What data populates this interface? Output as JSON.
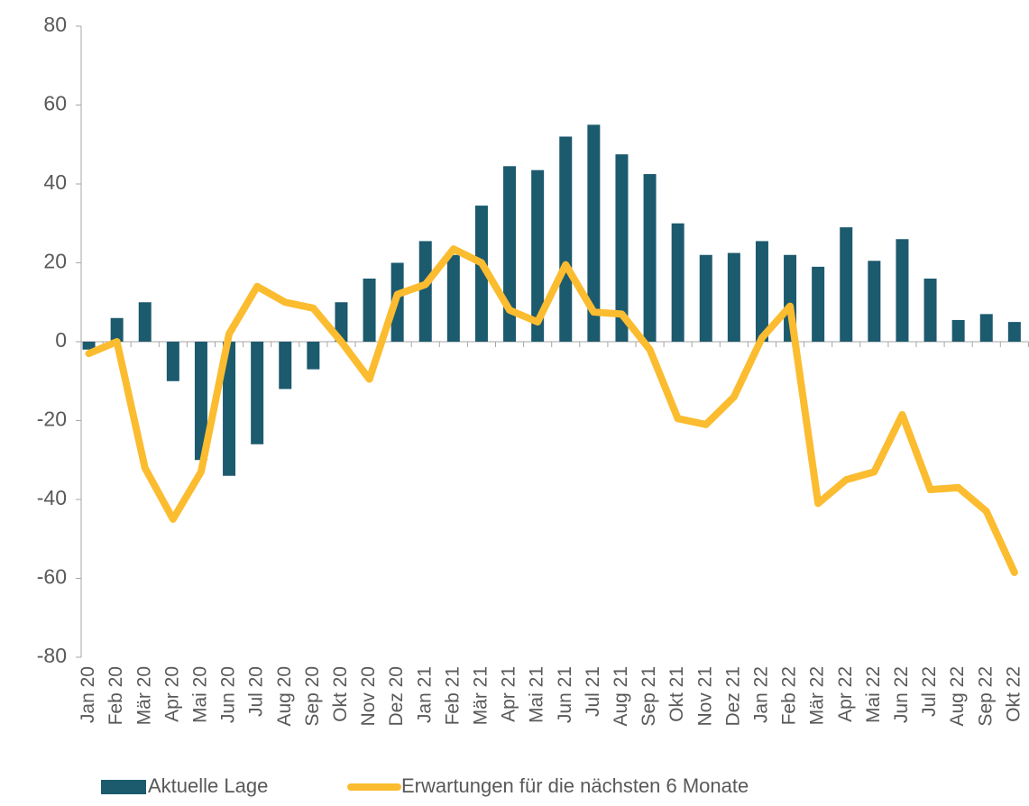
{
  "chart_data": {
    "type": "bar-line",
    "categories": [
      "Jan 20",
      "Feb 20",
      "Mär 20",
      "Apr 20",
      "Mai 20",
      "Jun 20",
      "Jul 20",
      "Aug 20",
      "Sep 20",
      "Okt 20",
      "Nov 20",
      "Dez 20",
      "Jan 21",
      "Feb 21",
      "Mär 21",
      "Apr 21",
      "Mai 21",
      "Jun 21",
      "Jul 21",
      "Aug 21",
      "Sep 21",
      "Okt 21",
      "Nov 21",
      "Dez 21",
      "Jan 22",
      "Feb 22",
      "Mär 22",
      "Apr 22",
      "Mai 22",
      "Jun 22",
      "Jul 22",
      "Aug 22",
      "Sep 22",
      "Okt 22"
    ],
    "series": [
      {
        "name": "Aktuelle Lage",
        "type": "bar",
        "color": "#1c5a6e",
        "values": [
          -2,
          6,
          10,
          -10,
          -30,
          -34,
          -26,
          -12,
          -7,
          10,
          16,
          20,
          25.5,
          22,
          34.5,
          44.5,
          43.5,
          52,
          55,
          47.5,
          42.5,
          30,
          22,
          22.5,
          25.5,
          22,
          19,
          29,
          20.5,
          26,
          16,
          5.5,
          7,
          5
        ]
      },
      {
        "name": "Erwartungen für die nächsten 6 Monate",
        "type": "line",
        "color": "#fbbc30",
        "values": [
          -3,
          0,
          -32,
          -45,
          -33,
          2,
          14,
          10,
          8.5,
          0,
          -9.5,
          12,
          14.5,
          23.5,
          20,
          8,
          5,
          19.5,
          7.5,
          7,
          -2,
          -19.5,
          -21,
          -14,
          1,
          9,
          -41,
          -35,
          -33,
          -18.5,
          -37.5,
          -37,
          -43,
          -58.5
        ]
      }
    ],
    "ylim": [
      -80,
      80
    ],
    "yticks": [
      -80,
      -60,
      -40,
      -20,
      0,
      20,
      40,
      60,
      80
    ],
    "grid": false,
    "legend": "bottom"
  }
}
